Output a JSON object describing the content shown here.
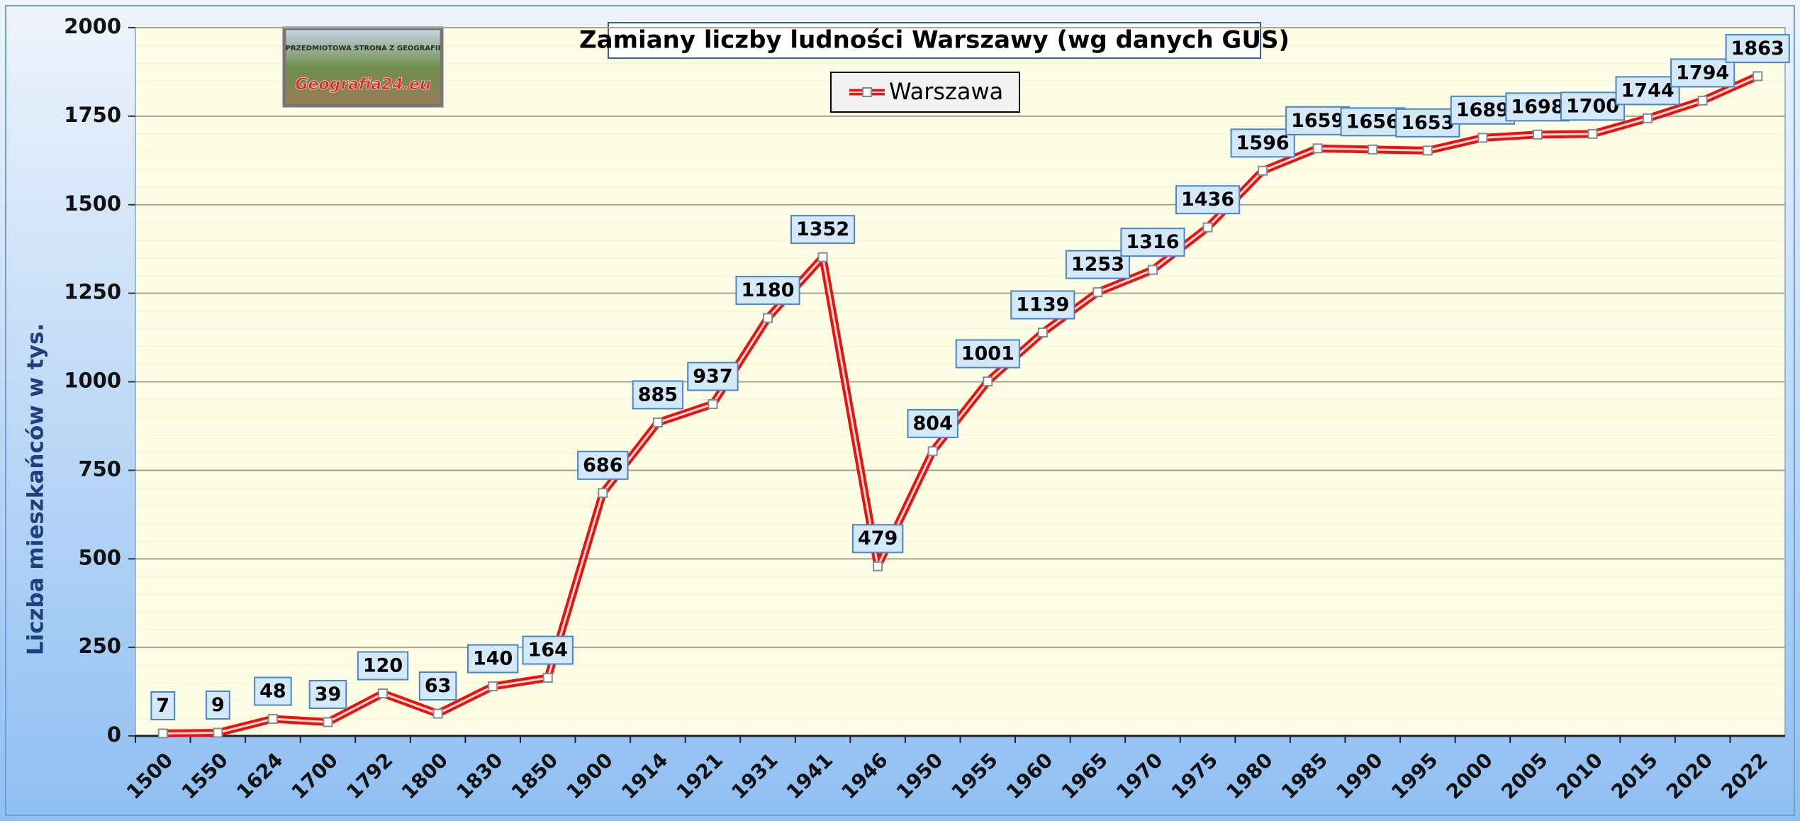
{
  "chart_data": {
    "type": "line",
    "title": "Zamiany liczby ludności Warszawy (wg danych GUS)",
    "y_label": "Liczba mieszkańców w tys.",
    "logo": {
      "top": "PRZEDMIOTOWA STRONA Z GEOGRAFII",
      "bottom": "Geografia24.eu"
    },
    "categories": [
      "1500",
      "1550",
      "1624",
      "1700",
      "1792",
      "1800",
      "1830",
      "1850",
      "1900",
      "1914",
      "1921",
      "1931",
      "1941",
      "1946",
      "1950",
      "1955",
      "1960",
      "1965",
      "1970",
      "1975",
      "1980",
      "1985",
      "1990",
      "1995",
      "2000",
      "2005",
      "2010",
      "2015",
      "2020",
      "2022"
    ],
    "series": [
      {
        "name": "Warszawa",
        "color": "#e8130f",
        "values": [
          7,
          9,
          48,
          39,
          120,
          63,
          140,
          164,
          686,
          885,
          937,
          1180,
          1352,
          479,
          804,
          1001,
          1139,
          1253,
          1316,
          1436,
          1596,
          1659,
          1656,
          1653,
          1689,
          1698,
          1700,
          1744,
          1794,
          1863
        ]
      }
    ],
    "ylim": [
      0,
      2000
    ],
    "yticks": [
      0,
      250,
      500,
      750,
      1000,
      1250,
      1500,
      1750,
      2000
    ],
    "grid": true,
    "legend": "top"
  }
}
